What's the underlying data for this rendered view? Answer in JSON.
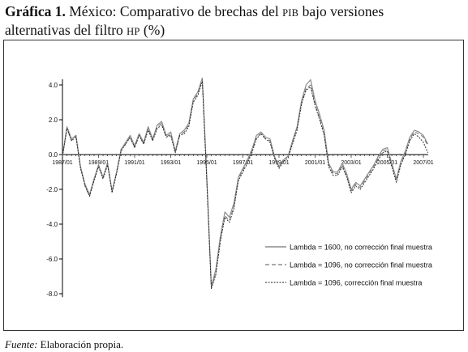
{
  "title": {
    "label": "Gráfica 1.",
    "text_before_pib": " México: Comparativo de brechas del ",
    "pib": "PIB",
    "text_after_pib": " bajo versiones",
    "line2": "alternativas del filtro ",
    "hp": "HP",
    "unit": " (%)"
  },
  "source": {
    "label": "Fuente:",
    "text": " Elaboración propia."
  },
  "colors": {
    "series1": "#8c8c8c",
    "series2": "#777777",
    "series3": "#222222",
    "axis": "#000000"
  },
  "chart_data": {
    "type": "line",
    "title": "",
    "xlabel": "",
    "ylabel": "",
    "x_tick_labels": [
      "1987/01",
      "1989/01",
      "1991/01",
      "1993/01",
      "1995/01",
      "1997/01",
      "1999/01",
      "2001/01",
      "2003/01",
      "2005/01",
      "2007/01"
    ],
    "y_tick_labels": [
      "4.0",
      "2.0",
      "0.0",
      "-2.0",
      "-4.0",
      "-6.0",
      "-8.0"
    ],
    "y_ticks": [
      4,
      2,
      0,
      -2,
      -4,
      -6,
      -8
    ],
    "ylim": [
      -8.2,
      4.2
    ],
    "x_start": "1987/01",
    "x_end": "2007/01",
    "frequency": "quarterly",
    "legend_position": "bottom-right",
    "grid": false,
    "series": [
      {
        "name": "Lambda = 1600, no corrección final muestra",
        "style": "solid",
        "values": [
          -0.1,
          1.6,
          0.9,
          1.1,
          -0.7,
          -1.7,
          -2.3,
          -1.4,
          -0.6,
          -1.3,
          -0.5,
          -2.1,
          -1.0,
          0.3,
          0.7,
          1.1,
          0.5,
          1.2,
          0.7,
          1.6,
          0.9,
          1.7,
          1.9,
          1.1,
          1.3,
          0.2,
          1.2,
          1.4,
          1.8,
          3.2,
          3.6,
          4.4,
          -1.3,
          -7.6,
          -6.6,
          -4.7,
          -3.3,
          -3.6,
          -2.8,
          -1.3,
          -0.8,
          -0.3,
          0.3,
          1.1,
          1.3,
          1.0,
          0.9,
          -0.1,
          -0.7,
          -0.3,
          -0.1,
          0.8,
          1.6,
          3.1,
          4.0,
          4.3,
          3.1,
          2.3,
          1.4,
          -0.5,
          -1.0,
          -1.0,
          -0.5,
          -1.1,
          -2.0,
          -1.6,
          -1.8,
          -1.4,
          -1.0,
          -0.6,
          -0.1,
          0.3,
          0.4,
          -0.5,
          -1.4,
          -0.4,
          0.2,
          1.0,
          1.4,
          1.3,
          1.1,
          0.6
        ]
      },
      {
        "name": "Lambda = 1096, no corrección final muestra",
        "style": "dashed",
        "values": [
          -0.1,
          1.5,
          0.8,
          1.1,
          -0.7,
          -1.8,
          -2.4,
          -1.5,
          -0.6,
          -1.3,
          -0.5,
          -2.1,
          -1.0,
          0.3,
          0.6,
          1.0,
          0.4,
          1.1,
          0.6,
          1.5,
          0.8,
          1.6,
          1.8,
          1.0,
          1.2,
          0.1,
          1.1,
          1.3,
          1.7,
          3.1,
          3.5,
          4.3,
          -1.5,
          -7.7,
          -6.8,
          -4.9,
          -3.5,
          -3.8,
          -3.0,
          -1.4,
          -0.9,
          -0.4,
          0.2,
          1.0,
          1.2,
          0.9,
          0.8,
          -0.2,
          -0.7,
          -0.3,
          -0.1,
          0.7,
          1.5,
          3.0,
          3.8,
          4.0,
          2.9,
          2.1,
          1.2,
          -0.6,
          -1.1,
          -1.1,
          -0.6,
          -1.2,
          -2.1,
          -1.7,
          -1.9,
          -1.5,
          -1.1,
          -0.7,
          -0.2,
          0.2,
          0.3,
          -0.6,
          -1.5,
          -0.5,
          0.1,
          0.9,
          1.3,
          1.2,
          1.0,
          0.5
        ]
      },
      {
        "name": "Lambda = 1096, corrección final muestra",
        "style": "dotted",
        "values": [
          -0.1,
          1.5,
          0.8,
          1.0,
          -0.8,
          -1.8,
          -2.4,
          -1.5,
          -0.7,
          -1.4,
          -0.6,
          -2.2,
          -1.1,
          0.2,
          0.6,
          1.0,
          0.4,
          1.1,
          0.6,
          1.4,
          0.8,
          1.5,
          1.7,
          1.0,
          1.1,
          0.1,
          1.1,
          1.2,
          1.6,
          3.0,
          3.4,
          4.2,
          -1.6,
          -7.7,
          -6.9,
          -5.0,
          -3.6,
          -3.9,
          -3.1,
          -1.5,
          -1.0,
          -0.5,
          0.1,
          0.9,
          1.2,
          0.9,
          0.7,
          -0.2,
          -0.8,
          -0.4,
          -0.2,
          0.6,
          1.4,
          2.9,
          3.7,
          3.9,
          2.8,
          2.0,
          1.1,
          -0.7,
          -1.2,
          -1.2,
          -0.7,
          -1.3,
          -2.2,
          -1.8,
          -2.0,
          -1.6,
          -1.2,
          -0.8,
          -0.3,
          0.1,
          0.2,
          -0.7,
          -1.6,
          -0.6,
          0.0,
          0.8,
          1.2,
          1.0,
          0.7,
          0.1
        ]
      }
    ]
  }
}
